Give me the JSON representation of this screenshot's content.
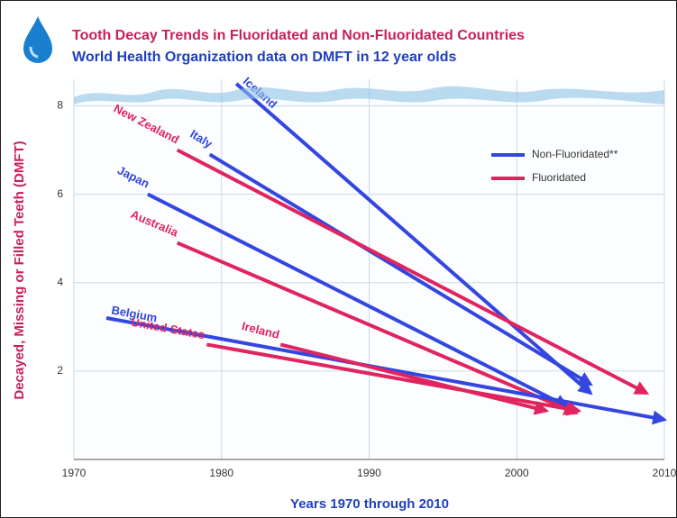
{
  "chart_data": {
    "type": "line",
    "title": "Tooth Decay Trends in Fluoridated and Non-Fluoridated Countries",
    "subtitle": "World Health Organization data on DMFT in 12 year olds",
    "xlabel": "Years 1970 through 2010",
    "ylabel": "Decayed, Missing or Filled Teeth (DMFT)",
    "xlim": [
      1970,
      2010
    ],
    "ylim": [
      0,
      8.6
    ],
    "xticks": [
      1970,
      1980,
      1990,
      2000,
      2010
    ],
    "yticks": [
      2,
      4,
      6,
      8
    ],
    "grid": true,
    "arrows": true,
    "legend_position": "upper right",
    "legend": [
      {
        "name": "Non-Fluoridated**",
        "color": "#3446e0"
      },
      {
        "name": "Fluoridated",
        "color": "#e0245e"
      }
    ],
    "series": [
      {
        "name": "Iceland",
        "color": "#3446e0",
        "x": [
          1981,
          2005
        ],
        "values": [
          8.5,
          1.5
        ]
      },
      {
        "name": "Italy",
        "color": "#3446e0",
        "x": [
          1979.2,
          2005
        ],
        "values": [
          6.9,
          1.7
        ]
      },
      {
        "name": "New Zealand",
        "color": "#e0245e",
        "x": [
          1977,
          2008.8
        ],
        "values": [
          7.0,
          1.5
        ]
      },
      {
        "name": "Japan",
        "color": "#3446e0",
        "x": [
          1975,
          2003.4
        ],
        "values": [
          6.0,
          1.2
        ]
      },
      {
        "name": "Australia",
        "color": "#e0245e",
        "x": [
          1977,
          2004
        ],
        "values": [
          4.9,
          1.05
        ]
      },
      {
        "name": "Belgium",
        "color": "#3446e0",
        "x": [
          1972.2,
          2010
        ],
        "values": [
          3.2,
          0.9
        ]
      },
      {
        "name": "Ireland",
        "color": "#e0245e",
        "x": [
          1984,
          2002
        ],
        "values": [
          2.6,
          1.1
        ]
      },
      {
        "name": "United States",
        "color": "#e0245e",
        "x": [
          1979,
          2004.2
        ],
        "values": [
          2.6,
          1.1
        ]
      }
    ]
  }
}
